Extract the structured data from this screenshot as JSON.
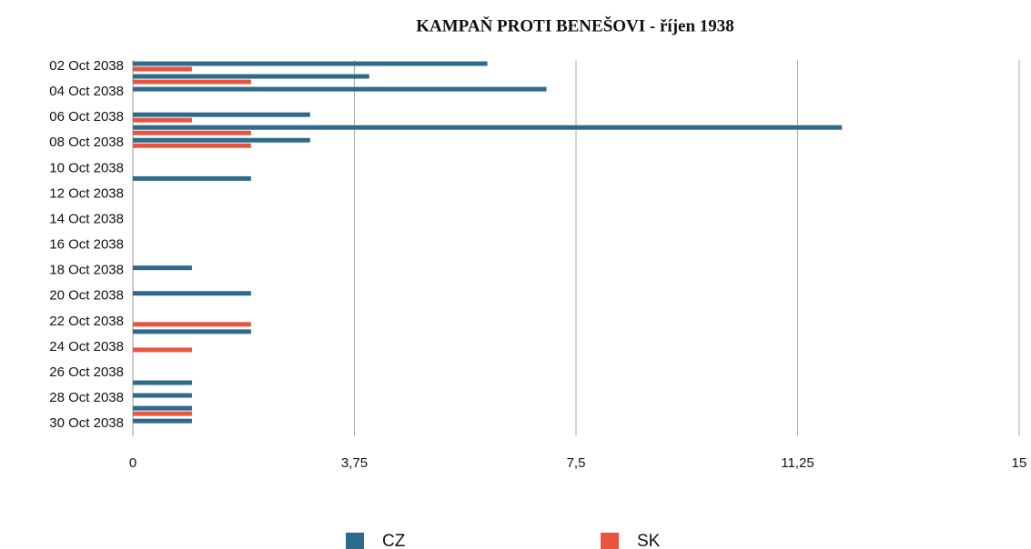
{
  "chart_data": {
    "type": "hbar",
    "title": "KAMPAŇ PROTI BENEŠOVI - říjen 1938",
    "categories": [
      "02 Oct 2038",
      null,
      "04 Oct 2038",
      null,
      "06 Oct 2038",
      null,
      "08 Oct 2038",
      null,
      "10 Oct 2038",
      null,
      "12 Oct 2038",
      null,
      "14 Oct 2038",
      null,
      "16 Oct 2038",
      null,
      "18 Oct 2038",
      null,
      "20 Oct 2038",
      null,
      "22 Oct 2038",
      null,
      "24 Oct 2038",
      null,
      "26 Oct 2038",
      null,
      "28 Oct 2038",
      null,
      "30 Oct 2038"
    ],
    "series": [
      {
        "name": "CZ",
        "color": "#2e6a8b",
        "values": [
          6,
          4,
          7,
          0,
          3,
          12,
          3,
          0,
          0,
          2,
          0,
          0,
          0,
          0,
          0,
          0,
          1,
          0,
          2,
          0,
          0,
          2,
          0,
          0,
          0,
          1,
          1,
          1,
          1
        ]
      },
      {
        "name": "SK",
        "color": "#e8553e",
        "values": [
          1,
          2,
          0,
          0,
          1,
          2,
          2,
          0,
          0,
          0,
          0,
          0,
          0,
          0,
          0,
          0,
          0,
          0,
          0,
          0,
          2,
          0,
          1,
          0,
          0,
          0,
          0,
          1,
          0
        ]
      }
    ],
    "xlim": [
      0,
      15
    ],
    "xticks": [
      0,
      {
        "value": 3.75,
        "label": "3,75"
      },
      {
        "value": 7.5,
        "label": "7,5"
      },
      {
        "value": 11.25,
        "label": "11,25"
      },
      15
    ],
    "grid": true,
    "legend": "bottom"
  }
}
